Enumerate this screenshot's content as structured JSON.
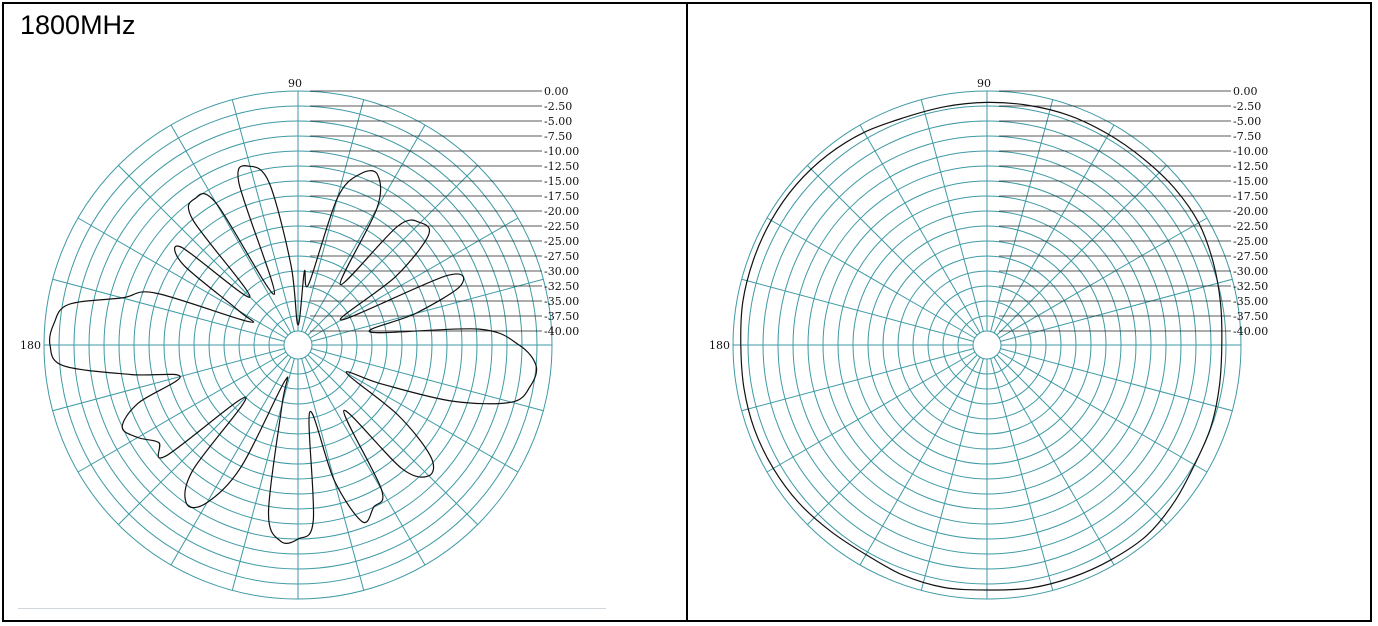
{
  "title": "1800MHz",
  "styles": {
    "grid_color": "#3f9aa5",
    "curve_color": "#111111"
  },
  "chart_data": [
    {
      "type": "polar",
      "title": "1800MHz",
      "angle_labels": [
        "90",
        "180"
      ],
      "r_labels": [
        "0.00",
        "-2.50",
        "-5.00",
        "-7.50",
        "-10.00",
        "-12.50",
        "-15.00",
        "-17.50",
        "-20.00",
        "-22.50",
        "-25.00",
        "-27.50",
        "-30.00",
        "-32.50",
        "-35.00",
        "-37.50",
        "-40.00"
      ],
      "r_range_db": [
        -40,
        0
      ],
      "angle_step_deg": 15,
      "series": [
        {
          "angles_deg": [
            0,
            5,
            10,
            15,
            20,
            25,
            30,
            35,
            40,
            45,
            50,
            55,
            60,
            65,
            70,
            75,
            80,
            85,
            90,
            95,
            100,
            105,
            110,
            115,
            120,
            125,
            130,
            135,
            140,
            145,
            150,
            155,
            160,
            165,
            170,
            175,
            180,
            185,
            190,
            195,
            200,
            205,
            210,
            215,
            220,
            225,
            230,
            235,
            240,
            245,
            250,
            255,
            260,
            265,
            270,
            275,
            280,
            285,
            290,
            295,
            300,
            305,
            310,
            315,
            320,
            325,
            330,
            335,
            340,
            345,
            350,
            355
          ],
          "gain_db": [
            -5.5,
            -12.0,
            -30.0,
            -22.0,
            -13.5,
            -15.0,
            -34.0,
            -22.5,
            -14.0,
            -13.5,
            -16.5,
            -30.0,
            -16.0,
            -11.0,
            -12.0,
            -17.0,
            -32.0,
            -30.0,
            -39.0,
            -29.0,
            -15.0,
            -11.5,
            -13.5,
            -33.0,
            -15.0,
            -12.5,
            -15.0,
            -31.0,
            -17.0,
            -19.0,
            -31.0,
            -33.0,
            -17.0,
            -12.0,
            -3.5,
            -1.5,
            -1.0,
            -3.0,
            -14.0,
            -22.0,
            -14.0,
            -10.0,
            -11.5,
            -14.0,
            -13.5,
            -30.0,
            -15.0,
            -10.0,
            -12.0,
            -20.0,
            -36.0,
            -32.0,
            -14.0,
            -9.5,
            -10.0,
            -13.0,
            -31.0,
            -19.0,
            -11.0,
            -12.5,
            -14.5,
            -29.0,
            -15.5,
            -11.5,
            -13.5,
            -22.0,
            -33.0,
            -27.0,
            -15.0,
            -5.5,
            -3.0,
            -2.5
          ]
        }
      ]
    },
    {
      "type": "polar",
      "angle_labels": [
        "90",
        "180"
      ],
      "r_labels": [
        "0.00",
        "-2.50",
        "-5.00",
        "-7.50",
        "-10.00",
        "-12.50",
        "-15.00",
        "-17.50",
        "-20.00",
        "-22.50",
        "-25.00",
        "-27.50",
        "-30.00",
        "-32.50",
        "-35.00",
        "-37.50",
        "-40.00"
      ],
      "r_range_db": [
        -40,
        0
      ],
      "angle_step_deg": 15,
      "series": [
        {
          "angles_deg": [
            0,
            10,
            20,
            30,
            40,
            50,
            60,
            70,
            80,
            90,
            100,
            110,
            120,
            130,
            140,
            150,
            160,
            170,
            180,
            190,
            200,
            210,
            220,
            230,
            240,
            250,
            260,
            270,
            280,
            290,
            300,
            310,
            320,
            330,
            340,
            350
          ],
          "gain_db": [
            -3.2,
            -2.8,
            -2.2,
            -1.6,
            -1.6,
            -1.8,
            -1.8,
            -1.7,
            -1.8,
            -1.9,
            -2.0,
            -2.0,
            -1.4,
            -1.0,
            -0.8,
            -0.8,
            -0.9,
            -1.0,
            -1.3,
            -1.2,
            -1.1,
            -1.2,
            -1.4,
            -1.8,
            -2.0,
            -1.5,
            -1.3,
            -1.5,
            -1.2,
            -1.1,
            -1.0,
            -0.9,
            -1.6,
            -2.4,
            -2.6,
            -3.0
          ]
        }
      ]
    }
  ]
}
